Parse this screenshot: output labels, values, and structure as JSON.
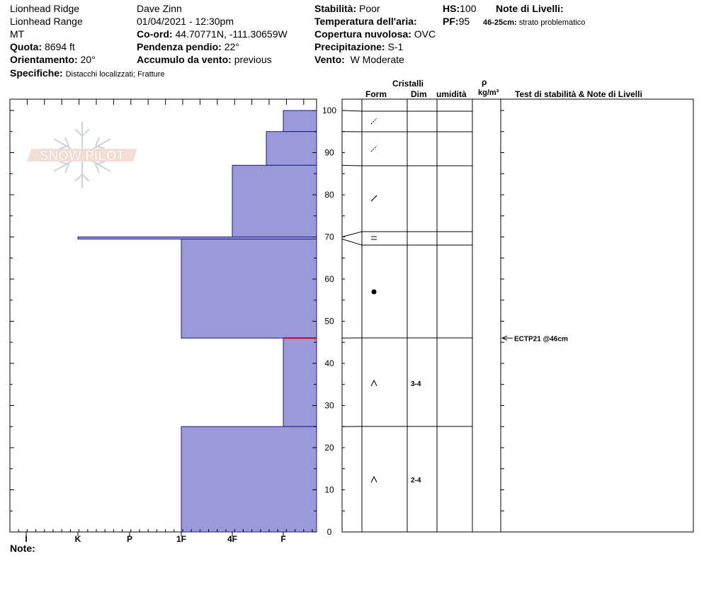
{
  "header": {
    "location": "Lionhead Ridge",
    "range": "Lionhead Range",
    "state": "MT",
    "elevation_label": "Quota:",
    "elevation": "8694 ft",
    "aspect_label": "Orientamento:",
    "aspect": "20°",
    "observer": "Dave Zinn",
    "datetime": "01/04/2021 - 12:30pm",
    "coord_label": "Co-ord:",
    "coord": "44.70771N, -111.30659W",
    "slope_label": "Pendenza pendio:",
    "slope": "22°",
    "wind_load_label": "Accumulo da vento:",
    "wind_load": "previous",
    "stability_label": "Stabilità:",
    "stability": "Poor",
    "air_temp_label": "Temperatura dell'aria:",
    "air_temp": "",
    "sky_label": "Copertura nuvolosa:",
    "sky": "OVC",
    "precip_label": "Precipitazione:",
    "precip": "S-1",
    "wind_label": "Vento:",
    "wind": "W Moderate",
    "hs_label": "HS:",
    "hs": "100",
    "pf_label": "PF:",
    "pf": "95",
    "layer_notes_label": "Note di Livelli:",
    "layer_note_depth": "46-25cm:",
    "layer_note_text": "strato problematico",
    "specifics_label": "Specifiche:",
    "specifics": "Distacchi localizzati;  Fratture",
    "notes_label": "Note:"
  },
  "columns": {
    "crystals": "Cristalli",
    "form": "Form",
    "size": "Dim",
    "moisture": "umidità",
    "rho": "ρ",
    "density_unit": "kg/m³",
    "tests": "Test di stabilità & Note di Livelli"
  },
  "logo_text": "SNOW PILOT",
  "colors": {
    "layer_fill": "#9a9ad8",
    "layer_stroke": "#1a1a8c",
    "weak_layer": "#cc0000"
  },
  "chart_data": {
    "type": "snow-profile",
    "hardness_scale": [
      "I",
      "K",
      "P",
      "1F",
      "4F",
      "F"
    ],
    "height_range": [
      0,
      100
    ],
    "height_ticks": [
      0,
      10,
      20,
      30,
      40,
      50,
      60,
      70,
      80,
      90,
      100
    ],
    "layers": [
      {
        "top": 100,
        "bottom": 95,
        "hardness": "F"
      },
      {
        "top": 95,
        "bottom": 87,
        "hardness": "F+"
      },
      {
        "top": 87,
        "bottom": 70,
        "hardness": "4F"
      },
      {
        "top": 70,
        "bottom": 69.5,
        "hardness": "K"
      },
      {
        "top": 69.5,
        "bottom": 46,
        "hardness": "1F"
      },
      {
        "top": 46,
        "bottom": 25,
        "hardness": "F"
      },
      {
        "top": 25,
        "bottom": 0,
        "hardness": "1F"
      }
    ],
    "crystal_layers": [
      {
        "top": 100,
        "bottom": 95,
        "form": "decomposing-fragments"
      },
      {
        "top": 95,
        "bottom": 87,
        "form": "decomposing-fragments"
      },
      {
        "top": 87,
        "bottom": 70,
        "form": "decomposing-fragments"
      },
      {
        "top": 70,
        "bottom": 69.5,
        "form": "melt-freeze-crust"
      },
      {
        "top": 69.5,
        "bottom": 46,
        "form": "rounded-grains"
      },
      {
        "top": 46,
        "bottom": 25,
        "form": "depth-hoar",
        "size": "3-4"
      },
      {
        "top": 25,
        "bottom": 0,
        "form": "depth-hoar",
        "size": "2-4"
      }
    ],
    "stability_tests": [
      {
        "height": 46,
        "label": "ECTP21 @46cm"
      }
    ],
    "weak_layer_height": 46
  }
}
